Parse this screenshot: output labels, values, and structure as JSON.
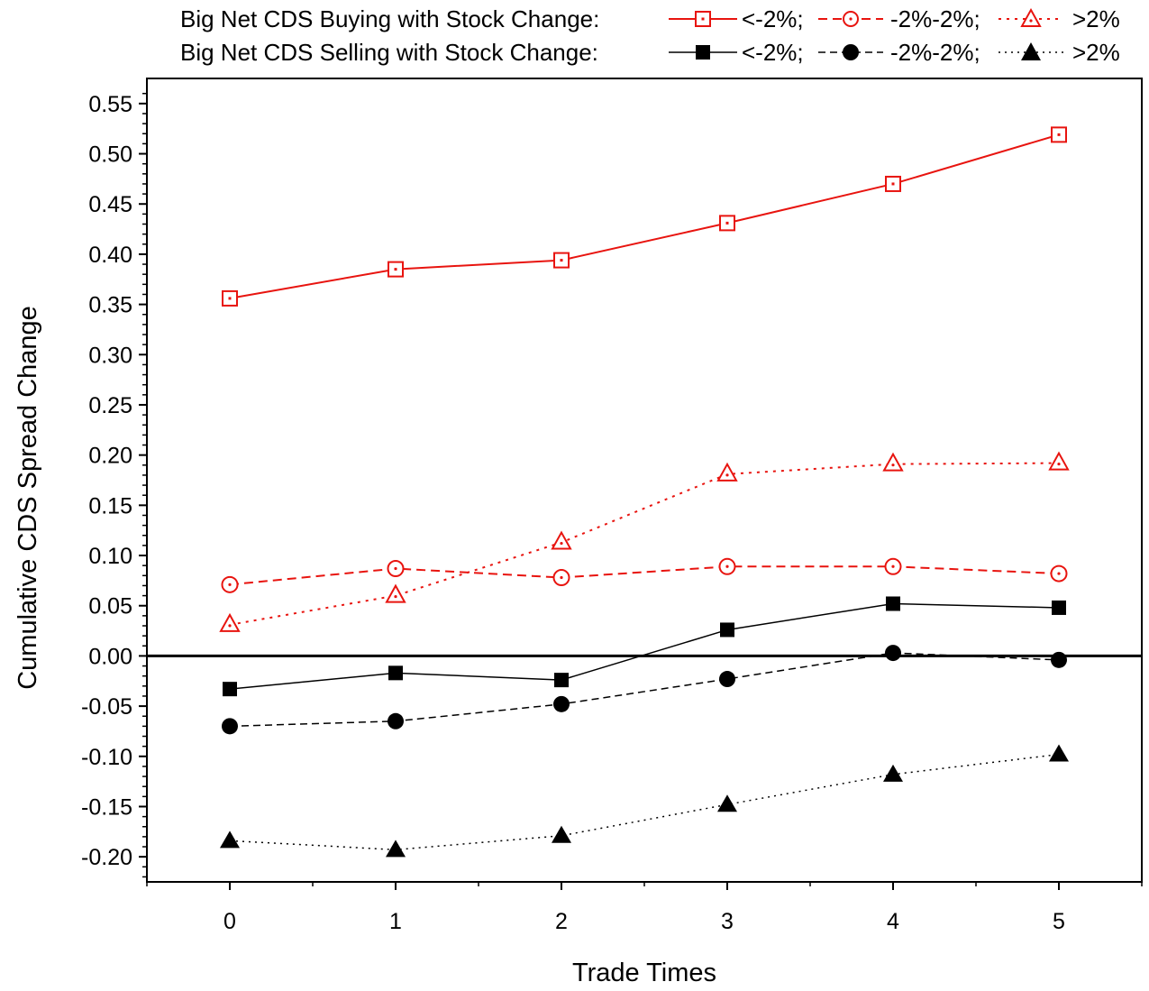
{
  "chart_data": {
    "type": "line",
    "title": "",
    "xlabel": "Trade Times",
    "ylabel": "Cumulative CDS Spread Change",
    "x": [
      0,
      1,
      2,
      3,
      4,
      5
    ],
    "xlim": [
      -0.5,
      5.5
    ],
    "ylim": [
      -0.225,
      0.575
    ],
    "x_ticks": [
      "0",
      "1",
      "2",
      "3",
      "4",
      "5"
    ],
    "y_ticks": [
      "0.55",
      "0.50",
      "0.45",
      "0.40",
      "0.35",
      "0.30",
      "0.25",
      "0.20",
      "0.15",
      "0.10",
      "0.05",
      "0.00",
      "-0.05",
      "-0.10",
      "-0.15",
      "-0.20"
    ],
    "zero_line": true,
    "grid": false,
    "legend_position": "top",
    "legend": {
      "buying_label": "Big Net CDS Buying with Stock Change:",
      "selling_label": "Big Net CDS Selling with Stock Change:",
      "buying_entries": [
        "<-2%;",
        "-2%-2%;",
        ">2%"
      ],
      "selling_entries": [
        "<-2%;",
        "-2%-2%;",
        ">2%"
      ]
    },
    "series": [
      {
        "group": "buying",
        "bucket": "<-2%",
        "color": "#e8140f",
        "marker": "square-open",
        "line": "solid",
        "values": [
          0.356,
          0.385,
          0.394,
          0.431,
          0.47,
          0.519
        ]
      },
      {
        "group": "buying",
        "bucket": "-2%-2%",
        "color": "#e8140f",
        "marker": "circle-open",
        "line": "dashed",
        "values": [
          0.071,
          0.087,
          0.078,
          0.089,
          0.089,
          0.082
        ]
      },
      {
        "group": "buying",
        "bucket": ">2%",
        "color": "#e8140f",
        "marker": "triangle-open",
        "line": "dotted",
        "values": [
          0.031,
          0.06,
          0.113,
          0.181,
          0.191,
          0.192
        ]
      },
      {
        "group": "selling",
        "bucket": "<-2%",
        "color": "#000000",
        "marker": "square-filled",
        "line": "solid",
        "values": [
          -0.033,
          -0.017,
          -0.024,
          0.026,
          0.052,
          0.048
        ]
      },
      {
        "group": "selling",
        "bucket": "-2%-2%",
        "color": "#000000",
        "marker": "circle-filled",
        "line": "dashed",
        "values": [
          -0.07,
          -0.065,
          -0.048,
          -0.023,
          0.003,
          -0.004
        ]
      },
      {
        "group": "selling",
        "bucket": ">2%",
        "color": "#000000",
        "marker": "triangle-filled",
        "line": "dotted",
        "values": [
          -0.184,
          -0.193,
          -0.179,
          -0.148,
          -0.118,
          -0.098
        ]
      }
    ]
  }
}
